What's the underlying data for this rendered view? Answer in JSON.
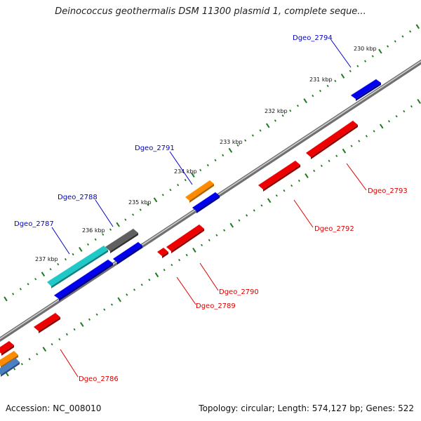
{
  "title": "Deinococcus geothermalis DSM 11300 plasmid 1, complete seque...",
  "footer": {
    "accession": "Accession: NC_008010",
    "stats": "Topology: circular; Length: 574,127 bp; Genes: 522"
  },
  "colors": {
    "backbone": "#8c8c8c",
    "tick": "#1e7a1e",
    "forward_label": "#0000cc",
    "reverse_label": "#dd0000",
    "leader_forward": "#0000cc",
    "leader_reverse": "#dd0000"
  },
  "scale_labels": [
    "230 kbp",
    "231 kbp",
    "232 kbp",
    "233 kbp",
    "234 kbp",
    "235 kbp",
    "236 kbp",
    "237 kbp"
  ],
  "forward_labels": [
    "Dgeo_2794",
    "Dgeo_2791",
    "Dgeo_2788",
    "Dgeo_2787"
  ],
  "reverse_labels": [
    "Dgeo_2793",
    "Dgeo_2792",
    "Dgeo_2790",
    "Dgeo_2789",
    "Dgeo_2786"
  ],
  "features": [
    {
      "strand": "forward",
      "color": "#0000ee",
      "label": "Dgeo_2794"
    },
    {
      "strand": "forward",
      "color": "#ff8c00",
      "label": "Dgeo_2791"
    },
    {
      "strand": "forward",
      "color": "#0000ee",
      "label": ""
    },
    {
      "strand": "forward",
      "color": "#606060",
      "label": "Dgeo_2788"
    },
    {
      "strand": "forward",
      "color": "#0000ee",
      "label": ""
    },
    {
      "strand": "forward",
      "color": "#20c8c8",
      "label": "Dgeo_2787"
    },
    {
      "strand": "forward",
      "color": "#0000ee",
      "label": ""
    },
    {
      "strand": "reverse",
      "color": "#ee0000",
      "label": "Dgeo_2793"
    },
    {
      "strand": "reverse",
      "color": "#ee0000",
      "label": "Dgeo_2792"
    },
    {
      "strand": "reverse",
      "color": "#ee0000",
      "label": "Dgeo_2790"
    },
    {
      "strand": "reverse",
      "color": "#ee0000",
      "label": "Dgeo_2789"
    },
    {
      "strand": "reverse",
      "color": "#ee0000",
      "label": "Dgeo_2786"
    },
    {
      "strand": "reverse",
      "color": "#ee0000",
      "label": ""
    },
    {
      "strand": "reverse",
      "color": "#ff8c00",
      "label": ""
    },
    {
      "strand": "reverse",
      "color": "#4a7fc0",
      "label": ""
    }
  ]
}
